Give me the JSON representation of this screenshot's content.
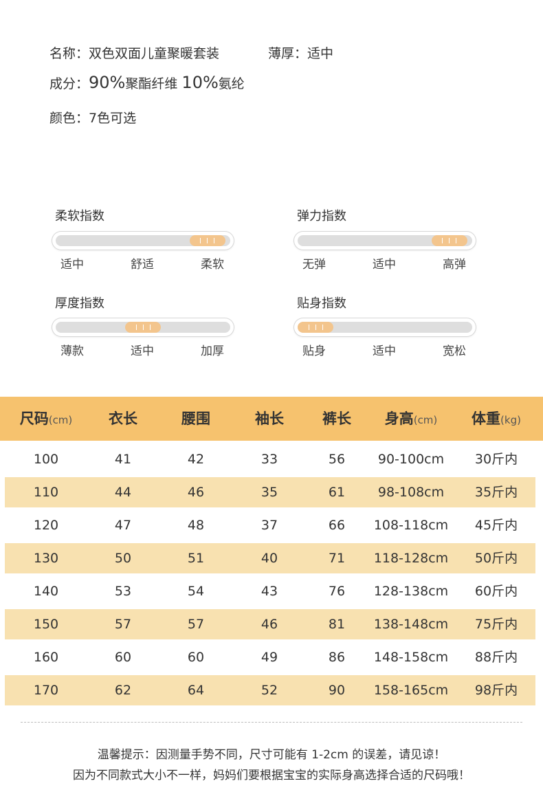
{
  "info": {
    "name": "名称：双色双面儿童聚暖套装",
    "thickness": "薄厚：适中",
    "composition_label": "成分：",
    "comp_pct1": "90%",
    "comp_mat1": "聚酯纤维",
    "comp_pct2": "10%",
    "comp_mat2": "氨纶",
    "colors": "颜色：7色可选"
  },
  "indices": [
    {
      "title": "柔软指数",
      "labels": [
        "适中",
        "舒适",
        "柔软"
      ],
      "level": 0.87
    },
    {
      "title": "弹力指数",
      "labels": [
        "无弹",
        "适中",
        "高弹"
      ],
      "level": 0.87
    },
    {
      "title": "厚度指数",
      "labels": [
        "薄款",
        "适中",
        "加厚"
      ],
      "level": 0.5
    },
    {
      "title": "贴身指数",
      "labels": [
        "贴身",
        "适中",
        "宽松"
      ],
      "level": 0.1
    }
  ],
  "table": {
    "headers": [
      {
        "main": "尺码",
        "unit": "(cm)"
      },
      {
        "main": "衣长",
        "unit": ""
      },
      {
        "main": "腰围",
        "unit": ""
      },
      {
        "main": "袖长",
        "unit": ""
      },
      {
        "main": "裤长",
        "unit": ""
      },
      {
        "main": "身高",
        "unit": "(cm)"
      },
      {
        "main": "体重",
        "unit": "(kg)"
      }
    ],
    "rows": [
      [
        "100",
        "41",
        "42",
        "33",
        "56",
        "90-100cm",
        "30斤内"
      ],
      [
        "110",
        "44",
        "46",
        "35",
        "61",
        "98-108cm",
        "35斤内"
      ],
      [
        "120",
        "47",
        "48",
        "37",
        "66",
        "108-118cm",
        "45斤内"
      ],
      [
        "130",
        "50",
        "51",
        "40",
        "71",
        "118-128cm",
        "50斤内"
      ],
      [
        "140",
        "53",
        "54",
        "43",
        "76",
        "128-138cm",
        "60斤内"
      ],
      [
        "150",
        "57",
        "57",
        "46",
        "81",
        "138-148cm",
        "75斤内"
      ],
      [
        "160",
        "60",
        "60",
        "49",
        "86",
        "148-158cm",
        "88斤内"
      ],
      [
        "170",
        "62",
        "64",
        "52",
        "90",
        "158-165cm",
        "98斤内"
      ]
    ]
  },
  "notes": {
    "line1": "温馨提示：因测量手势不同，尺寸可能有 1-2cm 的误差，请见谅！",
    "line2": "因为不同款式大小不一样，妈妈们要根据宝宝的实际身高选择合适的尺码哦！"
  },
  "colors": {
    "header_bg": "#f6c26e",
    "alt_row_bg": "#f8e1b0",
    "slider_knob": "#f3c58d",
    "slider_track": "#dedede"
  }
}
